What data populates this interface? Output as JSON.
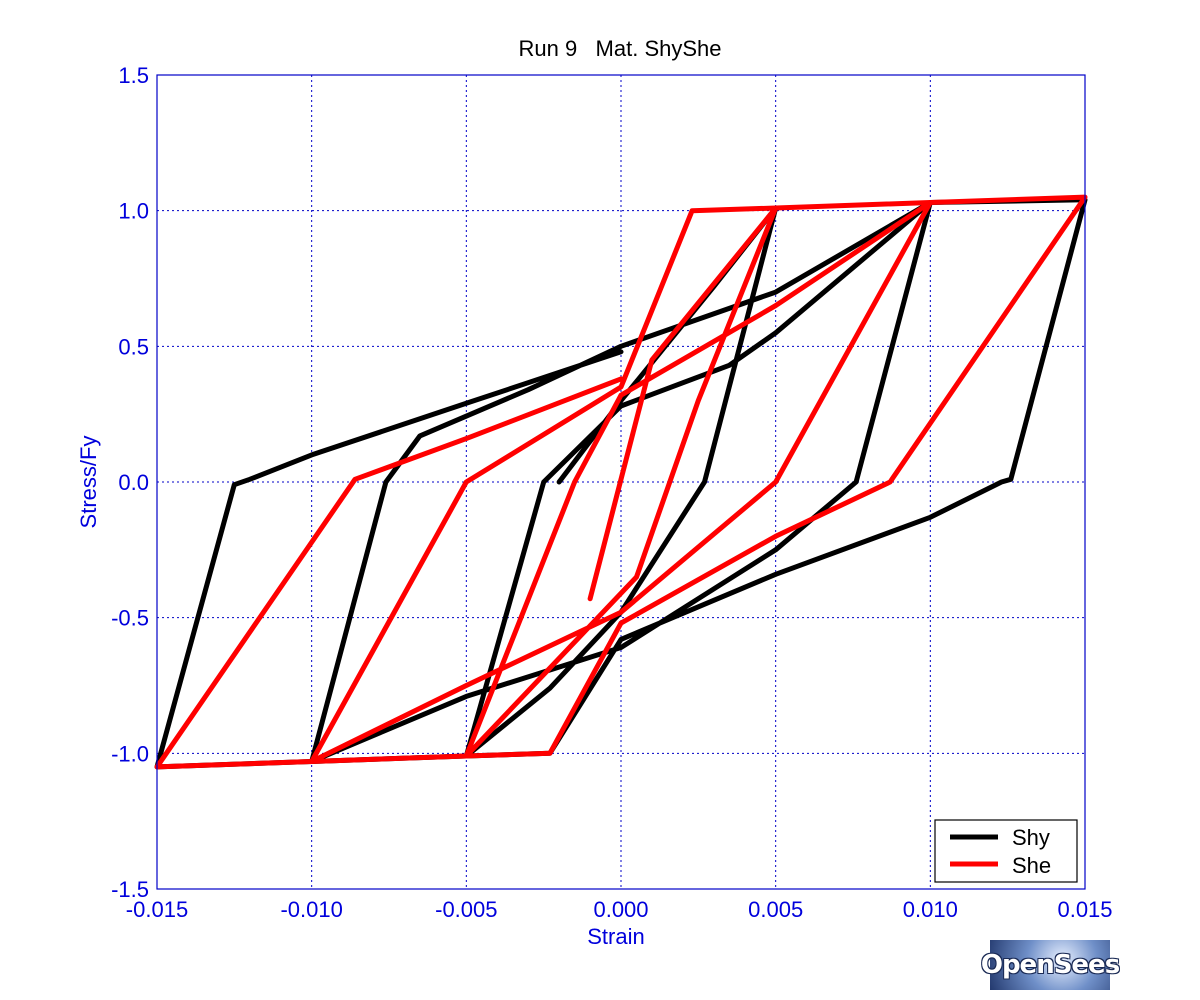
{
  "chart_data": {
    "type": "line",
    "title": "Run 9   Mat. ShyShe",
    "xlabel": "Strain",
    "ylabel": "Stress/Fy",
    "xlim": [
      -0.015,
      0.015
    ],
    "ylim": [
      -1.5,
      1.5
    ],
    "xticks": [
      -0.015,
      -0.01,
      -0.005,
      0.0,
      0.005,
      0.01,
      0.015
    ],
    "xtick_labels": [
      "-0.015",
      "-0.010",
      "-0.005",
      "0.000",
      "0.005",
      "0.010",
      "0.015"
    ],
    "yticks": [
      -1.5,
      -1.0,
      -0.5,
      0.0,
      0.5,
      1.0,
      1.5
    ],
    "ytick_labels": [
      "-1.5",
      "-1.0",
      "-0.5",
      "0.0",
      "0.5",
      "1.0",
      "1.5"
    ],
    "grid": true,
    "legend_position": "bottom-right",
    "series": [
      {
        "name": "Shy",
        "color": "#000000",
        "points": [
          [
            0.0,
            0.48
          ],
          [
            -0.005,
            0.29
          ],
          [
            -0.01,
            0.1
          ],
          [
            -0.012,
            0.01
          ],
          [
            -0.0125,
            -0.01
          ],
          [
            -0.015,
            -1.05
          ],
          [
            -0.01,
            -1.03
          ],
          [
            -0.005,
            -1.01
          ],
          [
            -0.0023,
            -1.0
          ],
          [
            0.0,
            -0.58
          ],
          [
            0.005,
            -0.34
          ],
          [
            0.01,
            -0.13
          ],
          [
            0.0123,
            0.0
          ],
          [
            0.0126,
            0.01
          ],
          [
            0.015,
            1.04
          ],
          [
            0.01,
            1.03
          ],
          [
            0.005,
            0.7
          ],
          [
            0.0,
            0.5
          ],
          [
            -0.003,
            0.34
          ],
          [
            -0.0065,
            0.17
          ],
          [
            -0.0076,
            0.0
          ],
          [
            -0.01,
            -1.03
          ],
          [
            -0.005,
            -0.79
          ],
          [
            0.0,
            -0.61
          ],
          [
            0.005,
            -0.25
          ],
          [
            0.0076,
            0.0
          ],
          [
            0.01,
            1.03
          ],
          [
            0.005,
            0.55
          ],
          [
            0.0035,
            0.43
          ],
          [
            0.0,
            0.28
          ],
          [
            -0.0025,
            0.0
          ],
          [
            -0.005,
            -1.01
          ],
          [
            -0.0023,
            -0.76
          ],
          [
            0.0,
            -0.48
          ],
          [
            0.0027,
            0.0
          ],
          [
            0.005,
            1.01
          ],
          [
            0.003,
            0.72
          ],
          [
            0.0,
            0.3
          ],
          [
            -0.002,
            0.0
          ]
        ]
      },
      {
        "name": "She",
        "color": "#ff0000",
        "points": [
          [
            0.0,
            0.38
          ],
          [
            -0.005,
            0.16
          ],
          [
            -0.0086,
            0.01
          ],
          [
            -0.015,
            -1.05
          ],
          [
            -0.01,
            -1.03
          ],
          [
            -0.005,
            -1.01
          ],
          [
            -0.0023,
            -1.0
          ],
          [
            0.0,
            -0.52
          ],
          [
            0.005,
            -0.2
          ],
          [
            0.0087,
            0.0
          ],
          [
            0.015,
            1.05
          ],
          [
            0.01,
            1.03
          ],
          [
            0.005,
            1.01
          ],
          [
            0.0023,
            1.0
          ],
          [
            0.0,
            0.35
          ],
          [
            -0.005,
            0.0
          ],
          [
            -0.01,
            -1.03
          ],
          [
            -0.005,
            -0.75
          ],
          [
            0.0,
            -0.48
          ],
          [
            0.005,
            0.0
          ],
          [
            0.01,
            1.03
          ],
          [
            0.005,
            0.65
          ],
          [
            0.0,
            0.32
          ],
          [
            -0.0015,
            0.0
          ],
          [
            -0.005,
            -1.01
          ],
          [
            -0.002,
            -0.65
          ],
          [
            0.0005,
            -0.35
          ],
          [
            0.0025,
            0.3
          ],
          [
            0.005,
            1.01
          ],
          [
            0.001,
            0.45
          ],
          [
            -0.001,
            -0.43
          ]
        ]
      }
    ]
  },
  "logo": {
    "text": "OpenSees"
  }
}
